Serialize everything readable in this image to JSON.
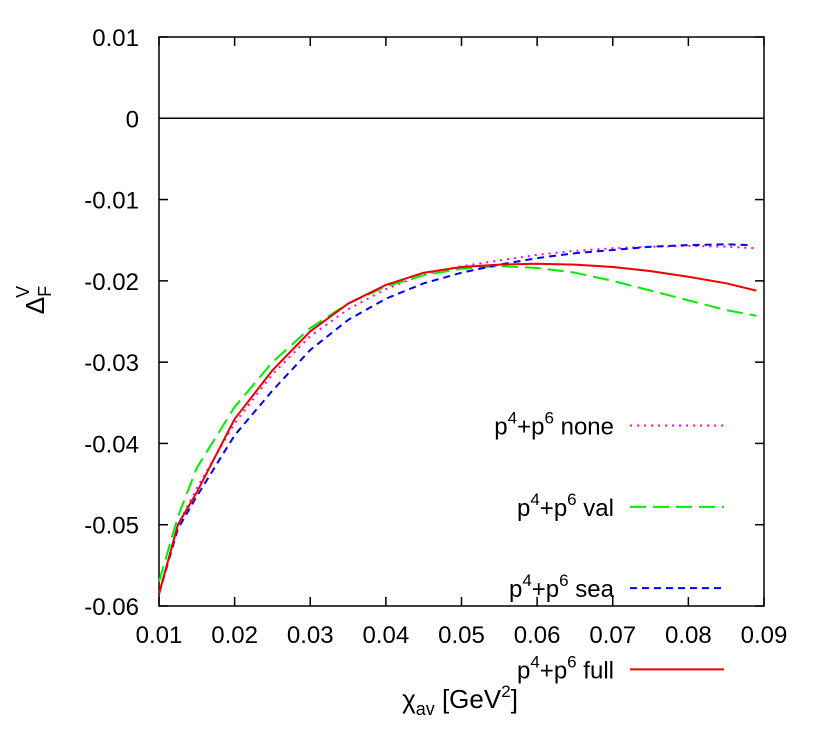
{
  "chart_data": {
    "type": "line",
    "title": "",
    "xlabel": {
      "base": "χ",
      "sub": "av",
      "unit_pre": " [GeV",
      "unit_sup": "2",
      "unit_post": "]"
    },
    "ylabel": {
      "base": "Δ",
      "sub": "F",
      "sup": "V"
    },
    "xlim": [
      0.01,
      0.09
    ],
    "ylim": [
      -0.06,
      0.01
    ],
    "xticks": [
      0.01,
      0.02,
      0.03,
      0.04,
      0.05,
      0.06,
      0.07,
      0.08,
      0.09
    ],
    "xtick_labels": [
      "0.01",
      "0.02",
      "0.03",
      "0.04",
      "0.05",
      "0.06",
      "0.07",
      "0.08",
      "0.09"
    ],
    "yticks": [
      0.01,
      0,
      -0.01,
      -0.02,
      -0.03,
      -0.04,
      -0.05,
      -0.06
    ],
    "ytick_labels": [
      "0.01",
      "0",
      "-0.01",
      "-0.02",
      "-0.03",
      "-0.04",
      "-0.05",
      "-0.06"
    ],
    "zero_line": true,
    "grid": false,
    "legend_position": "bottom-right",
    "series": [
      {
        "name": "p4+p6 none",
        "label": {
          "a": "p",
          "a_sup": "4",
          "mid": "+p",
          "b_sup": "6",
          "rest": " none"
        },
        "color": "#ff00ff",
        "dash": "2,5",
        "x": [
          0.01,
          0.0125,
          0.015,
          0.02,
          0.025,
          0.03,
          0.035,
          0.04,
          0.045,
          0.05,
          0.055,
          0.06,
          0.065,
          0.07,
          0.075,
          0.08,
          0.085,
          0.089
        ],
        "y": [
          -0.0585,
          -0.05,
          -0.0455,
          -0.0375,
          -0.0315,
          -0.0268,
          -0.0235,
          -0.021,
          -0.0192,
          -0.0182,
          -0.0175,
          -0.0168,
          -0.0163,
          -0.016,
          -0.0158,
          -0.0157,
          -0.0158,
          -0.016
        ]
      },
      {
        "name": "p4+p6 val",
        "label": {
          "a": "p",
          "a_sup": "4",
          "mid": "+p",
          "b_sup": "6",
          "rest": " val"
        },
        "color": "#00ee00",
        "dash": "16,7",
        "x": [
          0.01,
          0.0125,
          0.015,
          0.02,
          0.025,
          0.03,
          0.035,
          0.04,
          0.045,
          0.05,
          0.055,
          0.06,
          0.065,
          0.07,
          0.075,
          0.08,
          0.085,
          0.089
        ],
        "y": [
          -0.057,
          -0.049,
          -0.043,
          -0.0355,
          -0.03,
          -0.0258,
          -0.0228,
          -0.0207,
          -0.0193,
          -0.0185,
          -0.0182,
          -0.0184,
          -0.019,
          -0.02,
          -0.0212,
          -0.0224,
          -0.0236,
          -0.0243
        ]
      },
      {
        "name": "p4+p6 sea",
        "label": {
          "a": "p",
          "a_sup": "4",
          "mid": "+p",
          "b_sup": "6",
          "rest": " sea"
        },
        "color": "#0000ff",
        "dash": "7,5",
        "x": [
          0.01,
          0.0125,
          0.015,
          0.02,
          0.025,
          0.03,
          0.035,
          0.04,
          0.045,
          0.05,
          0.055,
          0.06,
          0.065,
          0.07,
          0.075,
          0.08,
          0.085,
          0.088
        ],
        "y": [
          -0.0585,
          -0.0505,
          -0.0465,
          -0.039,
          -0.0335,
          -0.0285,
          -0.0248,
          -0.0222,
          -0.0203,
          -0.019,
          -0.018,
          -0.0172,
          -0.0166,
          -0.0162,
          -0.0158,
          -0.0156,
          -0.0155,
          -0.0156
        ]
      },
      {
        "name": "p4+p6 full",
        "label": {
          "a": "p",
          "a_sup": "4",
          "mid": "+p",
          "b_sup": "6",
          "rest": " full"
        },
        "color": "#ee0000",
        "dash": "",
        "x": [
          0.01,
          0.0125,
          0.015,
          0.02,
          0.025,
          0.03,
          0.035,
          0.04,
          0.045,
          0.05,
          0.055,
          0.06,
          0.065,
          0.07,
          0.075,
          0.08,
          0.085,
          0.089
        ],
        "y": [
          -0.0585,
          -0.05,
          -0.046,
          -0.037,
          -0.031,
          -0.0262,
          -0.0228,
          -0.0205,
          -0.019,
          -0.0183,
          -0.018,
          -0.0179,
          -0.018,
          -0.0183,
          -0.0188,
          -0.0195,
          -0.0203,
          -0.0212
        ]
      }
    ]
  }
}
